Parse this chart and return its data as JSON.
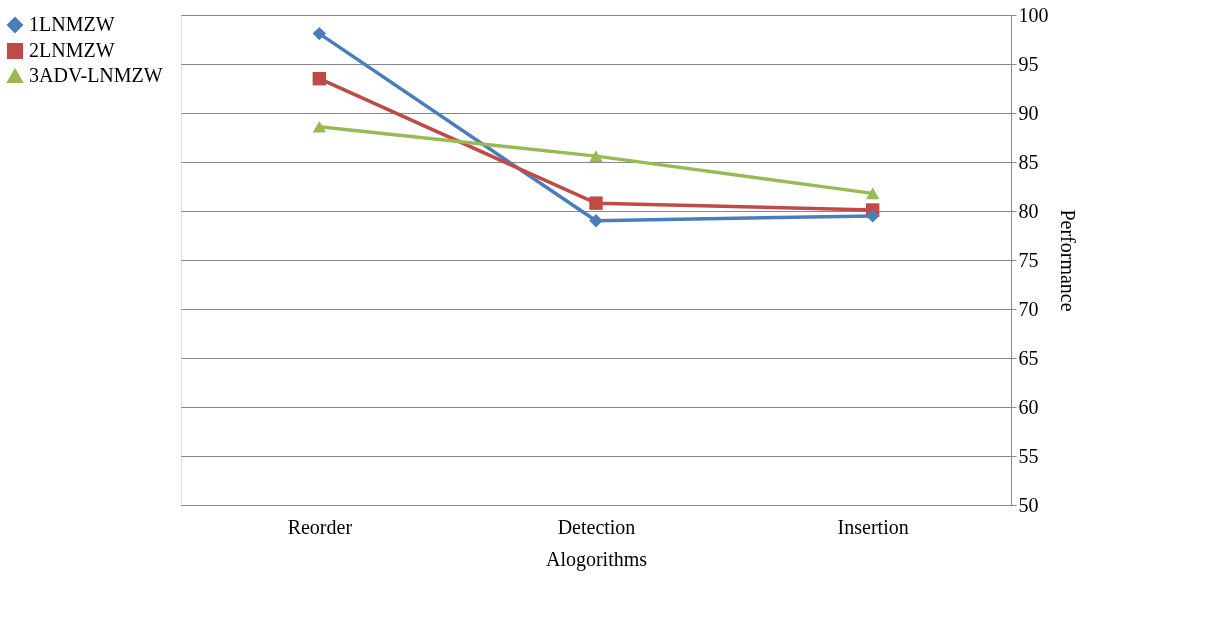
{
  "chart_data": {
    "type": "line",
    "xlabel": "Alogorithms",
    "ylabel": "Performance",
    "categories": [
      "Reorder",
      "Detection",
      "Insertion"
    ],
    "series": [
      {
        "name": "1LNMZW",
        "color": "#4a7ebb",
        "marker": "diamond",
        "values": [
          98.1,
          79.0,
          79.5
        ]
      },
      {
        "name": "2LNMZW",
        "color": "#be4b48",
        "marker": "square",
        "values": [
          93.5,
          80.8,
          80.1
        ]
      },
      {
        "name": "3ADV-LNMZW",
        "color": "#98b954",
        "marker": "triangle",
        "values": [
          88.6,
          85.6,
          81.8
        ]
      }
    ],
    "ylim": [
      50,
      100
    ],
    "yticks": [
      50,
      55,
      60,
      65,
      70,
      75,
      80,
      85,
      90,
      95,
      100
    ],
    "grid": "y",
    "legend": "left",
    "line_style": "solid"
  }
}
